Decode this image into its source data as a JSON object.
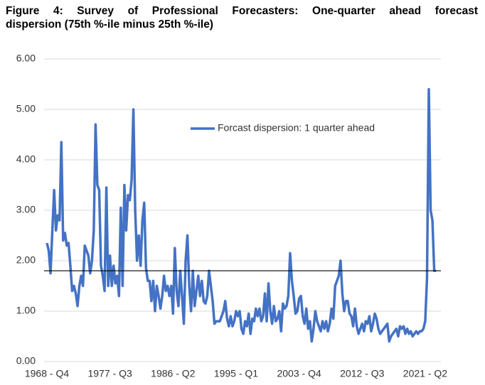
{
  "chart_data": {
    "type": "line",
    "title": [
      "Figure 4: Survey of Professional Forecasters: One-quarter ahead forecast",
      "dispersion (75th %-ile minus 25th %-ile)"
    ],
    "categories": [
      "1968 - Q4",
      null,
      null,
      null,
      null,
      null,
      null,
      null,
      null,
      null,
      null,
      null,
      null,
      null,
      null,
      null,
      null,
      null,
      null,
      null,
      null,
      null,
      null,
      null,
      null,
      null,
      null,
      null,
      null,
      null,
      null,
      null,
      null,
      null,
      null,
      "1977 - Q3",
      null,
      null,
      null,
      null,
      null,
      null,
      null,
      null,
      null,
      null,
      null,
      null,
      null,
      null,
      null,
      null,
      null,
      null,
      null,
      null,
      null,
      null,
      null,
      null,
      null,
      null,
      null,
      null,
      null,
      null,
      null,
      null,
      null,
      null,
      "1986 - Q2",
      null,
      null,
      null,
      null,
      null,
      null,
      null,
      null,
      null,
      null,
      null,
      null,
      null,
      null,
      null,
      null,
      null,
      null,
      null,
      null,
      null,
      null,
      null,
      null,
      null,
      null,
      null,
      null,
      null,
      null,
      null,
      null,
      null,
      null,
      "1995 - Q1",
      null,
      null,
      null,
      null,
      null,
      null,
      null,
      null,
      null,
      null,
      null,
      null,
      null,
      null,
      null,
      null,
      null,
      null,
      null,
      null,
      null,
      null,
      null,
      null,
      null,
      null,
      null,
      null,
      null,
      null,
      null,
      null,
      null,
      null,
      "2003 - Q4",
      null,
      null,
      null,
      null,
      null,
      null,
      null,
      null,
      null,
      null,
      null,
      null,
      null,
      null,
      null,
      null,
      null,
      null,
      null,
      null,
      null,
      null,
      null,
      null,
      null,
      null,
      null,
      null,
      null,
      null,
      null,
      null,
      null,
      null,
      "2012 - Q3",
      null,
      null,
      null,
      null,
      null,
      null,
      null,
      null,
      null,
      null,
      null,
      null,
      null,
      null,
      null,
      null,
      null,
      null,
      null,
      null,
      null,
      null,
      null,
      null,
      null,
      null,
      null,
      null,
      null,
      null,
      null,
      null,
      null,
      null,
      "2021 - Q2",
      null,
      null,
      null,
      null,
      null,
      null
    ],
    "series": [
      {
        "name": "Forcast dispersion: 1 quarter ahead",
        "color": "#4472c4",
        "values": [
          2.35,
          2.2,
          1.75,
          2.6,
          3.4,
          2.6,
          2.9,
          2.8,
          4.35,
          2.4,
          2.55,
          2.3,
          2.35,
          1.9,
          1.4,
          1.5,
          1.35,
          1.1,
          1.5,
          1.7,
          1.5,
          2.3,
          2.2,
          2.1,
          1.75,
          2.0,
          2.6,
          4.7,
          3.5,
          3.4,
          1.9,
          1.7,
          1.4,
          3.45,
          1.5,
          2.1,
          1.5,
          1.9,
          1.55,
          1.7,
          1.3,
          3.05,
          1.5,
          3.5,
          2.6,
          3.3,
          3.2,
          3.6,
          5.0,
          3.0,
          2.0,
          2.5,
          1.9,
          2.8,
          3.15,
          1.85,
          1.6,
          1.6,
          1.2,
          1.6,
          1.0,
          1.5,
          1.3,
          1.05,
          1.3,
          1.7,
          1.4,
          1.5,
          1.3,
          1.5,
          0.95,
          2.25,
          1.4,
          1.1,
          1.8,
          1.3,
          0.75,
          2.0,
          2.5,
          1.5,
          1.0,
          1.8,
          1.1,
          1.4,
          1.7,
          1.3,
          1.6,
          1.2,
          1.15,
          1.3,
          1.8,
          1.5,
          1.2,
          0.75,
          0.8,
          0.8,
          0.8,
          0.9,
          1.0,
          1.2,
          0.85,
          0.7,
          0.9,
          0.7,
          0.8,
          1.0,
          0.9,
          1.0,
          0.65,
          0.55,
          0.8,
          0.7,
          0.95,
          0.55,
          0.85,
          0.8,
          1.05,
          0.9,
          1.05,
          0.8,
          0.9,
          1.35,
          0.8,
          1.55,
          1.0,
          0.75,
          1.1,
          0.8,
          0.85,
          1.0,
          0.6,
          1.15,
          1.05,
          1.1,
          1.3,
          2.15,
          1.6,
          1.3,
          0.95,
          1.0,
          1.25,
          1.3,
          0.9,
          0.75,
          1.05,
          0.65,
          0.8,
          0.4,
          0.65,
          1.0,
          0.8,
          0.7,
          0.6,
          0.8,
          0.65,
          0.8,
          0.6,
          0.75,
          1.05,
          0.85,
          1.5,
          1.6,
          1.7,
          2.0,
          1.35,
          1.0,
          1.2,
          1.2,
          0.95,
          0.9,
          0.7,
          1.05,
          0.7,
          0.55,
          0.65,
          0.75,
          0.6,
          0.8,
          0.75,
          0.9,
          0.6,
          0.75,
          0.95,
          0.85,
          0.65,
          0.55,
          0.6,
          0.65,
          0.7,
          0.75,
          0.4,
          0.5,
          0.55,
          0.6,
          0.65,
          0.5,
          0.7,
          0.65,
          0.7,
          0.55,
          0.65,
          0.55,
          0.6,
          0.5,
          0.55,
          0.6,
          0.55,
          0.6,
          0.6,
          0.65,
          0.8,
          1.65,
          5.4,
          3.0,
          2.8,
          1.8,
          1.8
        ]
      }
    ],
    "reference_line": 1.8,
    "ylim": [
      0,
      6
    ],
    "yticks": [
      {
        "value": 0,
        "label": "0.00"
      },
      {
        "value": 1,
        "label": "1.00"
      },
      {
        "value": 2,
        "label": "2.00"
      },
      {
        "value": 3,
        "label": "3.00"
      },
      {
        "value": 4,
        "label": "4.00"
      },
      {
        "value": 5,
        "label": "5.00"
      },
      {
        "value": 6,
        "label": "6.00"
      }
    ],
    "grid": true
  }
}
